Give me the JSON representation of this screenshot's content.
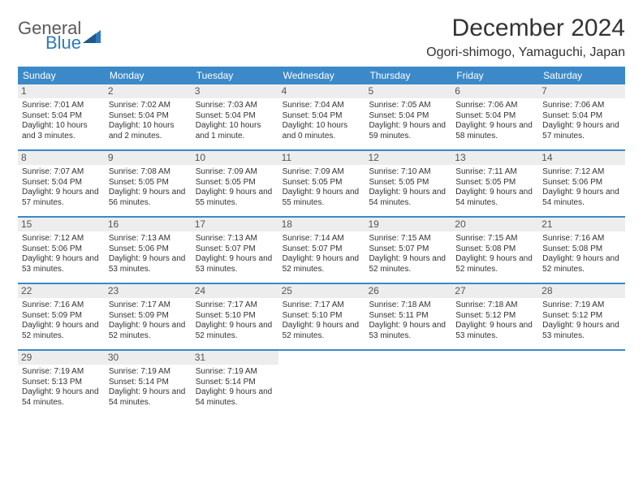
{
  "logo": {
    "part1": "General",
    "part2": "Blue"
  },
  "title": "December 2024",
  "location": "Ogori-shimogo, Yamaguchi, Japan",
  "colors": {
    "header_bg": "#3b89c9",
    "header_text": "#ffffff",
    "daynum_bg": "#ededed",
    "row_border": "#3b89c9",
    "logo_gray": "#5a5a5a",
    "logo_blue": "#2f79b9"
  },
  "day_headers": [
    "Sunday",
    "Monday",
    "Tuesday",
    "Wednesday",
    "Thursday",
    "Friday",
    "Saturday"
  ],
  "weeks": [
    [
      {
        "n": "1",
        "sunrise": "Sunrise: 7:01 AM",
        "sunset": "Sunset: 5:04 PM",
        "day": "Daylight: 10 hours and 3 minutes."
      },
      {
        "n": "2",
        "sunrise": "Sunrise: 7:02 AM",
        "sunset": "Sunset: 5:04 PM",
        "day": "Daylight: 10 hours and 2 minutes."
      },
      {
        "n": "3",
        "sunrise": "Sunrise: 7:03 AM",
        "sunset": "Sunset: 5:04 PM",
        "day": "Daylight: 10 hours and 1 minute."
      },
      {
        "n": "4",
        "sunrise": "Sunrise: 7:04 AM",
        "sunset": "Sunset: 5:04 PM",
        "day": "Daylight: 10 hours and 0 minutes."
      },
      {
        "n": "5",
        "sunrise": "Sunrise: 7:05 AM",
        "sunset": "Sunset: 5:04 PM",
        "day": "Daylight: 9 hours and 59 minutes."
      },
      {
        "n": "6",
        "sunrise": "Sunrise: 7:06 AM",
        "sunset": "Sunset: 5:04 PM",
        "day": "Daylight: 9 hours and 58 minutes."
      },
      {
        "n": "7",
        "sunrise": "Sunrise: 7:06 AM",
        "sunset": "Sunset: 5:04 PM",
        "day": "Daylight: 9 hours and 57 minutes."
      }
    ],
    [
      {
        "n": "8",
        "sunrise": "Sunrise: 7:07 AM",
        "sunset": "Sunset: 5:04 PM",
        "day": "Daylight: 9 hours and 57 minutes."
      },
      {
        "n": "9",
        "sunrise": "Sunrise: 7:08 AM",
        "sunset": "Sunset: 5:05 PM",
        "day": "Daylight: 9 hours and 56 minutes."
      },
      {
        "n": "10",
        "sunrise": "Sunrise: 7:09 AM",
        "sunset": "Sunset: 5:05 PM",
        "day": "Daylight: 9 hours and 55 minutes."
      },
      {
        "n": "11",
        "sunrise": "Sunrise: 7:09 AM",
        "sunset": "Sunset: 5:05 PM",
        "day": "Daylight: 9 hours and 55 minutes."
      },
      {
        "n": "12",
        "sunrise": "Sunrise: 7:10 AM",
        "sunset": "Sunset: 5:05 PM",
        "day": "Daylight: 9 hours and 54 minutes."
      },
      {
        "n": "13",
        "sunrise": "Sunrise: 7:11 AM",
        "sunset": "Sunset: 5:05 PM",
        "day": "Daylight: 9 hours and 54 minutes."
      },
      {
        "n": "14",
        "sunrise": "Sunrise: 7:12 AM",
        "sunset": "Sunset: 5:06 PM",
        "day": "Daylight: 9 hours and 54 minutes."
      }
    ],
    [
      {
        "n": "15",
        "sunrise": "Sunrise: 7:12 AM",
        "sunset": "Sunset: 5:06 PM",
        "day": "Daylight: 9 hours and 53 minutes."
      },
      {
        "n": "16",
        "sunrise": "Sunrise: 7:13 AM",
        "sunset": "Sunset: 5:06 PM",
        "day": "Daylight: 9 hours and 53 minutes."
      },
      {
        "n": "17",
        "sunrise": "Sunrise: 7:13 AM",
        "sunset": "Sunset: 5:07 PM",
        "day": "Daylight: 9 hours and 53 minutes."
      },
      {
        "n": "18",
        "sunrise": "Sunrise: 7:14 AM",
        "sunset": "Sunset: 5:07 PM",
        "day": "Daylight: 9 hours and 52 minutes."
      },
      {
        "n": "19",
        "sunrise": "Sunrise: 7:15 AM",
        "sunset": "Sunset: 5:07 PM",
        "day": "Daylight: 9 hours and 52 minutes."
      },
      {
        "n": "20",
        "sunrise": "Sunrise: 7:15 AM",
        "sunset": "Sunset: 5:08 PM",
        "day": "Daylight: 9 hours and 52 minutes."
      },
      {
        "n": "21",
        "sunrise": "Sunrise: 7:16 AM",
        "sunset": "Sunset: 5:08 PM",
        "day": "Daylight: 9 hours and 52 minutes."
      }
    ],
    [
      {
        "n": "22",
        "sunrise": "Sunrise: 7:16 AM",
        "sunset": "Sunset: 5:09 PM",
        "day": "Daylight: 9 hours and 52 minutes."
      },
      {
        "n": "23",
        "sunrise": "Sunrise: 7:17 AM",
        "sunset": "Sunset: 5:09 PM",
        "day": "Daylight: 9 hours and 52 minutes."
      },
      {
        "n": "24",
        "sunrise": "Sunrise: 7:17 AM",
        "sunset": "Sunset: 5:10 PM",
        "day": "Daylight: 9 hours and 52 minutes."
      },
      {
        "n": "25",
        "sunrise": "Sunrise: 7:17 AM",
        "sunset": "Sunset: 5:10 PM",
        "day": "Daylight: 9 hours and 52 minutes."
      },
      {
        "n": "26",
        "sunrise": "Sunrise: 7:18 AM",
        "sunset": "Sunset: 5:11 PM",
        "day": "Daylight: 9 hours and 53 minutes."
      },
      {
        "n": "27",
        "sunrise": "Sunrise: 7:18 AM",
        "sunset": "Sunset: 5:12 PM",
        "day": "Daylight: 9 hours and 53 minutes."
      },
      {
        "n": "28",
        "sunrise": "Sunrise: 7:19 AM",
        "sunset": "Sunset: 5:12 PM",
        "day": "Daylight: 9 hours and 53 minutes."
      }
    ],
    [
      {
        "n": "29",
        "sunrise": "Sunrise: 7:19 AM",
        "sunset": "Sunset: 5:13 PM",
        "day": "Daylight: 9 hours and 54 minutes."
      },
      {
        "n": "30",
        "sunrise": "Sunrise: 7:19 AM",
        "sunset": "Sunset: 5:14 PM",
        "day": "Daylight: 9 hours and 54 minutes."
      },
      {
        "n": "31",
        "sunrise": "Sunrise: 7:19 AM",
        "sunset": "Sunset: 5:14 PM",
        "day": "Daylight: 9 hours and 54 minutes."
      },
      {
        "n": "",
        "sunrise": "",
        "sunset": "",
        "day": ""
      },
      {
        "n": "",
        "sunrise": "",
        "sunset": "",
        "day": ""
      },
      {
        "n": "",
        "sunrise": "",
        "sunset": "",
        "day": ""
      },
      {
        "n": "",
        "sunrise": "",
        "sunset": "",
        "day": ""
      }
    ]
  ]
}
